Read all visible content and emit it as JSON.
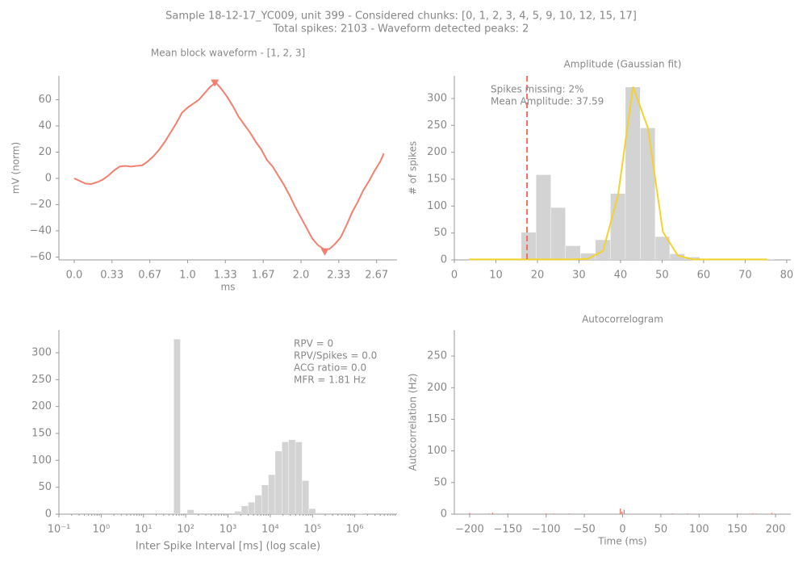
{
  "figure_title": [
    "Sample 18-12-17_YC009, unit 399 - Considered chunks: [0, 1, 2, 3, 4, 5, 9, 10, 12, 15, 17]",
    "Total spikes: 2103 - Waveform detected peaks: 2"
  ],
  "chart_data": [
    {
      "type": "line",
      "title": "Mean block waveform - [1, 2, 3]",
      "x_label": "ms",
      "y_label": "mV (norm)",
      "color": "#f08070",
      "x": [
        0,
        0.05,
        0.1,
        0.15,
        0.2,
        0.25,
        0.3,
        0.35,
        0.4,
        0.45,
        0.5,
        0.55,
        0.6,
        0.65,
        0.7,
        0.75,
        0.8,
        0.85,
        0.9,
        0.95,
        1.0,
        1.05,
        1.1,
        1.15,
        1.2,
        1.25,
        1.3,
        1.35,
        1.4,
        1.45,
        1.5,
        1.55,
        1.6,
        1.65,
        1.7,
        1.75,
        1.8,
        1.85,
        1.9,
        1.95,
        2.0,
        2.05,
        2.1,
        2.15,
        2.2,
        2.25,
        2.3,
        2.35,
        2.4,
        2.45,
        2.5,
        2.55,
        2.6,
        2.65,
        2.7,
        2.73
      ],
      "values": [
        0,
        -2,
        -4,
        -4.3,
        -3,
        -1,
        2,
        6,
        9,
        9.5,
        9,
        9.5,
        10,
        13,
        17,
        22,
        28,
        35,
        42,
        50,
        54,
        57,
        60,
        65,
        70,
        73,
        68,
        62,
        55,
        47,
        41,
        35,
        28,
        22,
        14,
        9,
        2,
        -5,
        -13,
        -22,
        -30,
        -38,
        -46,
        -51,
        -54,
        -54,
        -50,
        -45,
        -36,
        -26,
        -18,
        -9,
        -2,
        6,
        13,
        19
      ],
      "peaks": {
        "x": [
          1.24,
          2.21
        ],
        "values": [
          73,
          -56
        ],
        "color": "#f08070"
      },
      "xlim": [
        -0.135,
        2.847
      ],
      "xticks": [
        {
          "value": 0,
          "label": "0.0"
        },
        {
          "value": 0.333,
          "label": "0.33"
        },
        {
          "value": 0.667,
          "label": "0.67"
        },
        {
          "value": 1,
          "label": "1.0"
        },
        {
          "value": 1.333,
          "label": "1.33"
        },
        {
          "value": 1.667,
          "label": "1.67"
        },
        {
          "value": 2,
          "label": "2.0"
        },
        {
          "value": 2.333,
          "label": "2.33"
        },
        {
          "value": 2.667,
          "label": "2.67"
        }
      ],
      "ylim": [
        -62.2,
        78.2
      ],
      "yticks": [
        {
          "value": -60,
          "label": "−60"
        },
        {
          "value": -40,
          "label": "−40"
        },
        {
          "value": -20,
          "label": "−20"
        },
        0,
        20,
        40,
        60
      ]
    },
    {
      "type": "histogram",
      "title": "Amplitude (Gaussian fit)",
      "y_label": "# of spikes",
      "color": "#d3d3d3",
      "bins": [
        5.3,
        8.9,
        12.5,
        16.1,
        19.7,
        23.3,
        26.8,
        30.4,
        34.0,
        37.6,
        41.2,
        44.8,
        48.4,
        51.9,
        55.5,
        59.1,
        62.7,
        66.3,
        69.8,
        73.4,
        77.0
      ],
      "counts": [
        0,
        0,
        0,
        51,
        158,
        97,
        26,
        12,
        37,
        123,
        321,
        245,
        43,
        11,
        5,
        2,
        1,
        1,
        1,
        1
      ],
      "fit": {
        "x": [
          3.5,
          7.1,
          10.7,
          14.3,
          17.9,
          21.5,
          25.1,
          28.7,
          32.2,
          35.8,
          39.4,
          43.0,
          46.6,
          50.2,
          53.8,
          57.4,
          61.0,
          64.5,
          68.1,
          71.7,
          75.3
        ],
        "values": [
          1,
          1,
          1,
          1,
          1,
          1,
          1,
          1,
          2,
          17,
          120,
          322,
          245,
          52,
          8,
          1,
          1,
          1,
          1,
          1,
          1
        ],
        "color": "#f2d32e"
      },
      "vline": {
        "x": 17.5,
        "color": "#ef6f5e"
      },
      "annotations": [
        "Spikes missing: 2%",
        "Mean Amplitude: 37.59"
      ],
      "xlim": [
        0,
        81
      ],
      "xticks": [
        0,
        10,
        20,
        30,
        40,
        50,
        60,
        70,
        80
      ],
      "ylim": [
        0,
        342
      ],
      "yticks": [
        0,
        50,
        100,
        150,
        200,
        250,
        300
      ]
    },
    {
      "type": "histogram",
      "x_label": "Inter Spike Interval [ms] (log scale)",
      "xscale": "log",
      "color": "#d3d3d3",
      "bins": [
        0.1,
        0.1445,
        0.2089,
        0.302,
        0.4365,
        0.631,
        0.912,
        1.318,
        1.905,
        2.754,
        3.981,
        5.754,
        8.318,
        12.02,
        17.38,
        25.12,
        36.31,
        52.48,
        75.86,
        109.6,
        158.5,
        229.1,
        331.1,
        478.6,
        691.8,
        1000,
        1445,
        2089,
        3020,
        4365,
        6310,
        9120,
        13183,
        19055,
        27542,
        39811,
        57544,
        83176,
        120226,
        173780,
        251189,
        363078,
        524807,
        758578,
        1096478,
        1584893,
        2290868,
        3311311,
        4786301,
        6918310,
        10000000
      ],
      "counts": [
        0,
        0,
        0,
        0,
        0,
        0,
        0,
        0,
        0,
        0,
        0,
        0,
        0,
        0,
        0,
        0,
        0,
        325,
        0,
        8,
        0,
        0,
        0,
        0,
        0,
        0,
        5,
        15,
        22,
        35,
        54,
        73,
        117,
        134,
        138,
        134,
        62,
        10,
        2,
        0,
        0,
        0,
        0,
        0,
        1,
        0,
        0,
        0,
        0,
        0
      ],
      "annotations": [
        "RPV = 0",
        "RPV/Spikes = 0.0",
        "ACG ratio= 0.0",
        "MFR = 1.81 Hz"
      ],
      "xlim": [
        0.1,
        10000000
      ],
      "xticks": [
        {
          "value": 0.1,
          "label": "10⁻¹"
        },
        {
          "value": 1,
          "label": "10⁰"
        },
        {
          "value": 10,
          "label": "10¹"
        },
        {
          "value": 100,
          "label": "10²"
        },
        {
          "value": 1000,
          "label": "10³"
        },
        {
          "value": 10000,
          "label": "10⁴"
        },
        {
          "value": 100000,
          "label": "10⁵"
        },
        {
          "value": 1000000,
          "label": "10⁶"
        }
      ],
      "ylim": [
        0,
        342
      ],
      "yticks": [
        0,
        50,
        100,
        150,
        200,
        250,
        300
      ]
    },
    {
      "type": "bar",
      "title": "Autocorrelogram",
      "x_label": "Time (ms)",
      "y_label": "Autocorrelation (Hz)",
      "color": "#ef6f5e",
      "x": [
        -200,
        -175,
        -170,
        -150,
        -100,
        -90,
        -70,
        -3,
        -1,
        2,
        65,
        85,
        150,
        170,
        175,
        195
      ],
      "values": [
        2,
        1,
        2,
        1,
        1,
        1,
        1,
        9,
        4,
        7,
        1,
        1,
        1,
        1,
        1,
        2
      ],
      "xlim": [
        -220,
        220
      ],
      "xticks": [
        {
          "value": -200,
          "label": "−200"
        },
        {
          "value": -150,
          "label": "−150"
        },
        {
          "value": -100,
          "label": "−100"
        },
        {
          "value": -50,
          "label": "−50"
        },
        0,
        50,
        100,
        150,
        200
      ],
      "ylim": [
        0,
        291
      ],
      "yticks": [
        0,
        50,
        100,
        150,
        200,
        250
      ]
    }
  ]
}
